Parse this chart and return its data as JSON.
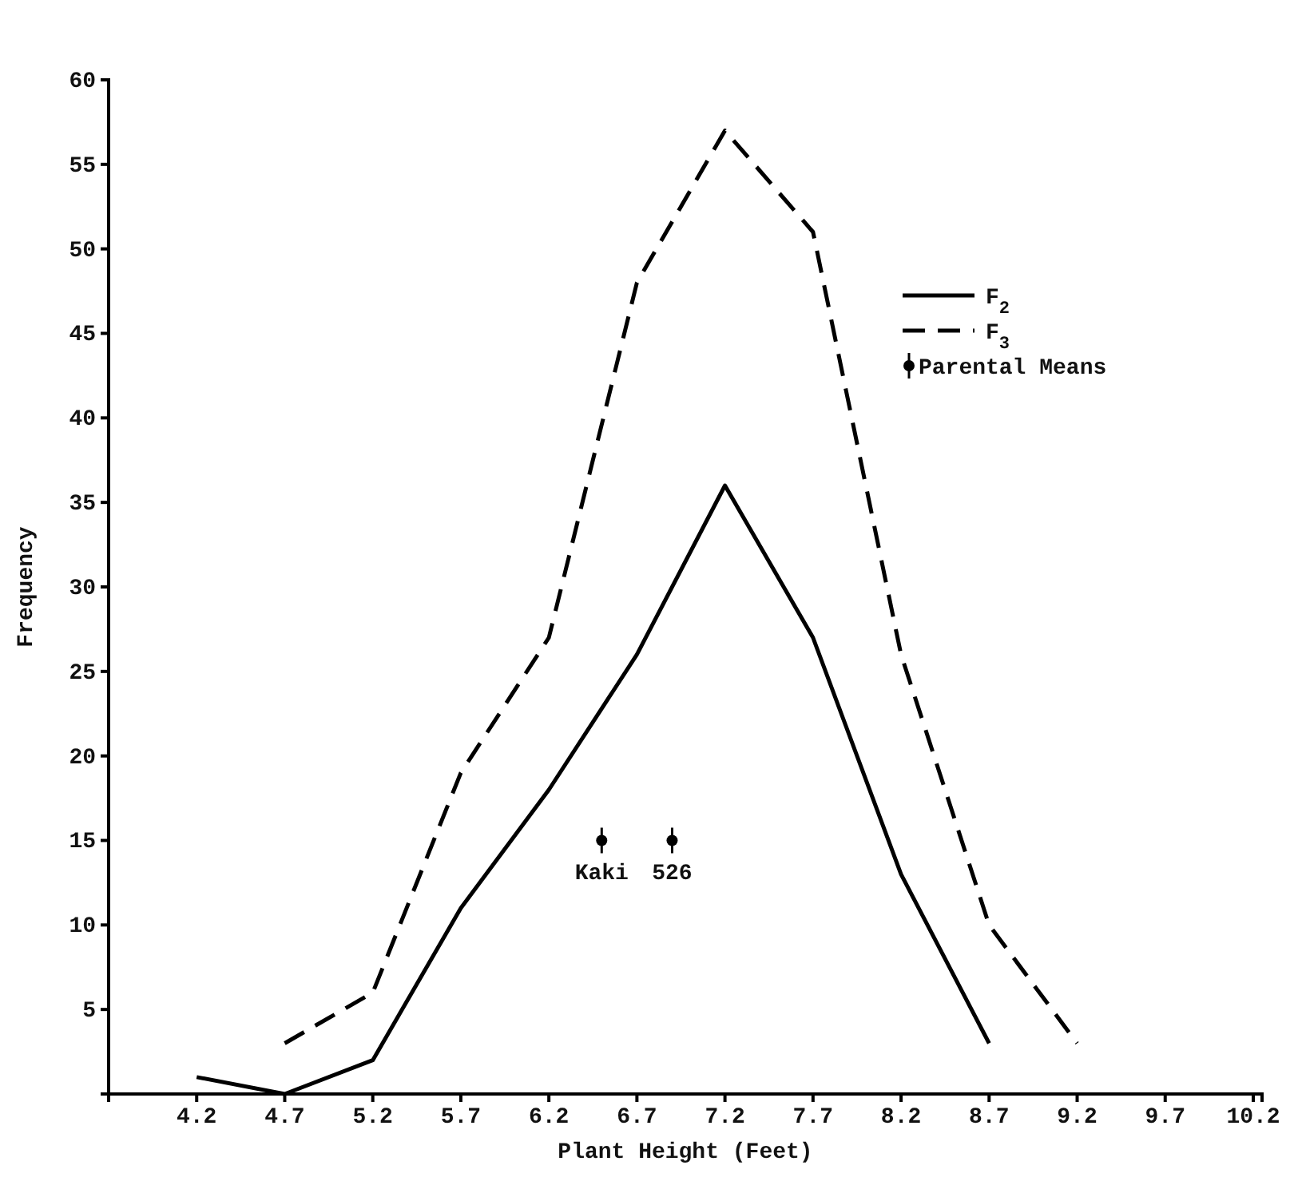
{
  "chart_data": {
    "type": "line",
    "xlabel": "Plant Height (Feet)",
    "ylabel": "Frequency",
    "xlim": [
      3.7,
      10.25
    ],
    "xticks": [
      4.2,
      4.7,
      5.2,
      5.7,
      6.2,
      6.7,
      7.2,
      7.7,
      8.2,
      8.7,
      9.2,
      9.7,
      10.2
    ],
    "ylim": [
      0,
      60
    ],
    "yticks": [
      5,
      10,
      15,
      20,
      25,
      30,
      35,
      40,
      45,
      50,
      55,
      60
    ],
    "grid": false,
    "legend": "top right",
    "series": [
      {
        "name": "F$_{2}$",
        "color": "#000000",
        "line_style": "solid",
        "x": [
          4.2,
          4.7,
          5.2,
          5.7,
          6.2,
          6.7,
          7.2,
          7.7,
          8.2,
          8.7
        ],
        "values": [
          1,
          0,
          2,
          11,
          18,
          26,
          36,
          27,
          13,
          3
        ]
      },
      {
        "name": "F$_{3}$",
        "color": "#000000",
        "line_style": "dashed",
        "x": [
          4.7,
          5.2,
          5.7,
          6.2,
          6.7,
          7.2,
          7.7,
          8.2,
          8.7,
          9.2
        ],
        "values": [
          3,
          6,
          19,
          27,
          48,
          57,
          51,
          26,
          10,
          3
        ]
      },
      {
        "name": "Parental Means",
        "type": "scatter",
        "marker": "circle",
        "color": "#000000",
        "x": [
          6.5,
          6.9
        ],
        "values": [
          15,
          15
        ]
      }
    ],
    "annotations": [
      {
        "text": "Kaki",
        "x": 6.5,
        "y": 15
      },
      {
        "text": "526",
        "x": 6.9,
        "y": 15
      }
    ]
  }
}
